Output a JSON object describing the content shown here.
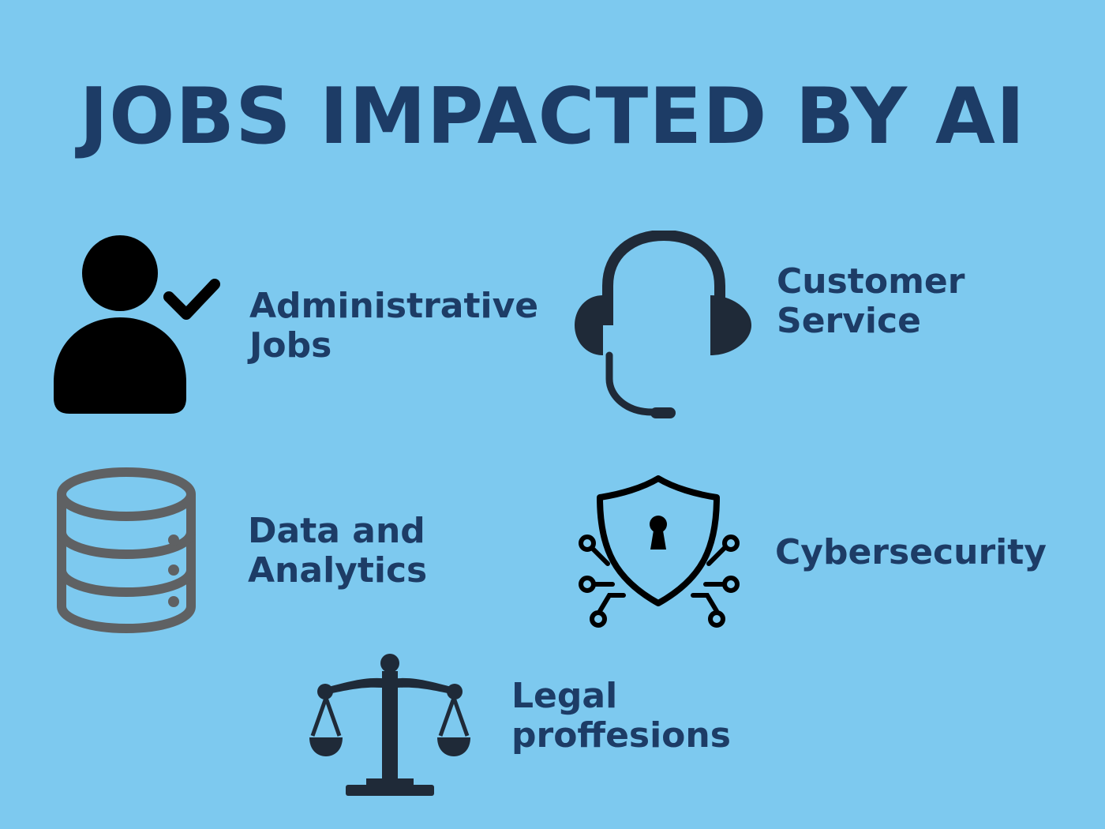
{
  "title": "JOBS IMPACTED BY AI",
  "items": [
    {
      "icon": "user-check-icon",
      "line1": "Administrative",
      "line2": "Jobs"
    },
    {
      "icon": "headset-icon",
      "line1": "Customer",
      "line2": "Service"
    },
    {
      "icon": "database-server-icon",
      "line1": "Data and",
      "line2": "Analytics"
    },
    {
      "icon": "shield-lock-icon",
      "line1": "Cybersecurity",
      "line2": ""
    },
    {
      "icon": "scales-of-justice-icon",
      "line1": "Legal",
      "line2": "proffesions"
    }
  ],
  "colors": {
    "background": "#7dc9ef",
    "text": "#1d3c66",
    "icon_dark": "#1f2a38",
    "icon_gray": "#5f6163"
  }
}
